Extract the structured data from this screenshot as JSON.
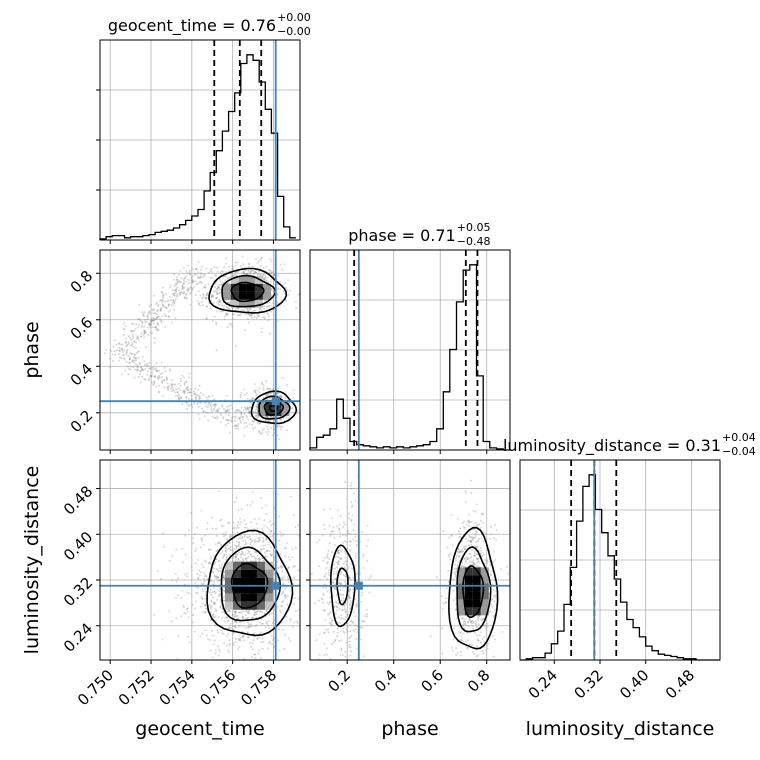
{
  "chart_data": {
    "type": "corner",
    "parameters": [
      "geocent_time",
      "phase",
      "luminosity_distance"
    ],
    "truth_color": "#4682b4",
    "truths": [
      0.75811,
      0.25,
      0.31
    ],
    "titles": [
      {
        "param": "geocent_time",
        "text": "geocent_time = 0.76",
        "sup": "+0.00",
        "sub": "−0.00"
      },
      {
        "param": "phase",
        "text": "phase = 0.71",
        "sup": "+0.05",
        "sub": "−0.48"
      },
      {
        "param": "luminosity_distance",
        "text": "luminosity_distance = 0.31",
        "sup": "+0.04",
        "sub": "−0.04"
      }
    ],
    "axes": {
      "geocent_time": {
        "range": [
          0.7495,
          0.7593
        ],
        "ticks": [
          0.75,
          0.752,
          0.754,
          0.756,
          0.758
        ],
        "tick_labels": [
          "0.750",
          "0.752",
          "0.754",
          "0.756",
          "0.758"
        ]
      },
      "phase": {
        "range": [
          0.04,
          0.9
        ],
        "ticks": [
          0.2,
          0.4,
          0.6,
          0.8
        ],
        "tick_labels": [
          "0.2",
          "0.4",
          "0.6",
          "0.8"
        ]
      },
      "luminosity_distance": {
        "range": [
          0.18,
          0.53
        ],
        "ticks": [
          0.24,
          0.32,
          0.4,
          0.48
        ],
        "tick_labels": [
          "0.24",
          "0.32",
          "0.40",
          "0.48"
        ]
      }
    },
    "histograms": [
      {
        "param": "geocent_time",
        "quantiles": [
          0.7551,
          0.75635,
          0.7574
        ],
        "bins": [
          0.7495,
          0.7498,
          0.7501,
          0.7504,
          0.7507,
          0.751,
          0.7513,
          0.7516,
          0.7519,
          0.7522,
          0.7525,
          0.7528,
          0.7531,
          0.7534,
          0.7537,
          0.754,
          0.7543,
          0.7546,
          0.7549,
          0.7552,
          0.7555,
          0.7558,
          0.7561,
          0.7564,
          0.7567,
          0.757,
          0.7573,
          0.7576,
          0.7579,
          0.7582,
          0.7585,
          0.7588,
          0.7591
        ],
        "counts": [
          1,
          3,
          4,
          4,
          2,
          3,
          3,
          4,
          5,
          7,
          8,
          9,
          11,
          14,
          18,
          22,
          28,
          45,
          62,
          82,
          100,
          118,
          135,
          162,
          170,
          165,
          145,
          120,
          98,
          40,
          12,
          2
        ]
      },
      {
        "param": "phase",
        "quantiles": [
          0.23,
          0.71,
          0.76
        ],
        "bins": [
          0.04,
          0.0687,
          0.0973,
          0.126,
          0.1547,
          0.1833,
          0.212,
          0.2407,
          0.2693,
          0.298,
          0.3267,
          0.3553,
          0.384,
          0.4127,
          0.4413,
          0.47,
          0.4987,
          0.5273,
          0.556,
          0.5847,
          0.6133,
          0.6413,
          0.67,
          0.6987,
          0.7273,
          0.756,
          0.7847,
          0.8133,
          0.842,
          0.8707,
          0.9
        ],
        "counts": [
          2,
          12,
          14,
          20,
          48,
          30,
          8,
          5,
          4,
          3,
          2,
          3,
          2,
          3,
          2,
          3,
          4,
          5,
          8,
          20,
          55,
          95,
          140,
          170,
          175,
          70,
          8,
          2,
          1,
          0
        ]
      },
      {
        "param": "luminosity_distance",
        "quantiles": [
          0.2695,
          0.31,
          0.3485
        ],
        "bins": [
          0.18,
          0.191,
          0.202,
          0.213,
          0.224,
          0.235,
          0.246,
          0.257,
          0.268,
          0.279,
          0.29,
          0.301,
          0.312,
          0.323,
          0.334,
          0.345,
          0.356,
          0.367,
          0.378,
          0.389,
          0.4,
          0.411,
          0.422,
          0.433,
          0.444,
          0.455,
          0.466,
          0.477,
          0.488,
          0.499,
          0.51,
          0.53
        ],
        "counts": [
          0,
          1,
          2,
          2,
          6,
          14,
          25,
          48,
          80,
          120,
          150,
          160,
          130,
          110,
          90,
          70,
          50,
          35,
          28,
          20,
          12,
          8,
          5,
          4,
          3,
          2,
          1,
          1,
          0,
          0,
          0
        ]
      }
    ],
    "contour_panels": [
      {
        "x": "geocent_time",
        "y": "phase"
      },
      {
        "x": "geocent_time",
        "y": "luminosity_distance"
      },
      {
        "x": "phase",
        "y": "luminosity_distance"
      }
    ]
  }
}
